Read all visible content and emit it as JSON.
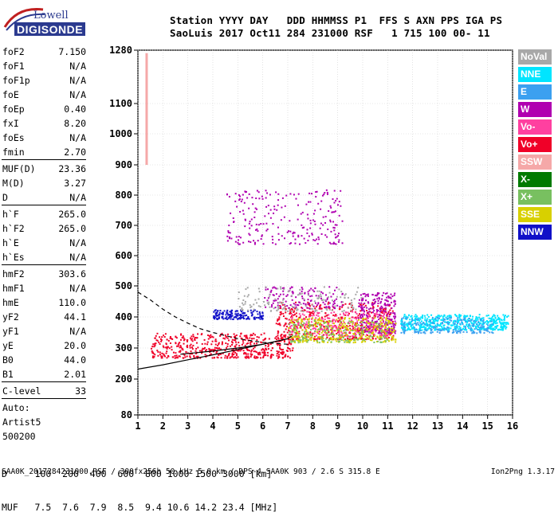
{
  "logo": {
    "line1": "Lowell",
    "line2": "DIGISONDE"
  },
  "header": {
    "line1": "Station YYYY DAY   DDD HHMMSS P1  FFS S AXN PPS IGA PS",
    "line2": "SaoLuis 2017 Oct11 284 231000 RSF   1 715 100 00- 11"
  },
  "params": [
    {
      "k": "foF2",
      "v": "7.150"
    },
    {
      "k": "foF1",
      "v": "N/A"
    },
    {
      "k": "foF1p",
      "v": "N/A"
    },
    {
      "k": "foE",
      "v": "N/A"
    },
    {
      "k": "foEp",
      "v": "0.40"
    },
    {
      "k": "fxI",
      "v": "8.20"
    },
    {
      "k": "foEs",
      "v": "N/A"
    },
    {
      "k": "fmin",
      "v": "2.70"
    },
    {
      "sep": true
    },
    {
      "k": "MUF(D)",
      "v": "23.36"
    },
    {
      "k": "M(D)",
      "v": "3.27"
    },
    {
      "k": "D",
      "v": "N/A"
    },
    {
      "sep": true
    },
    {
      "k": "h`F",
      "v": "265.0"
    },
    {
      "k": "h`F2",
      "v": "265.0"
    },
    {
      "k": "h`E",
      "v": "N/A"
    },
    {
      "k": "h`Es",
      "v": "N/A"
    },
    {
      "sep": true
    },
    {
      "k": "hmF2",
      "v": "303.6"
    },
    {
      "k": "hmF1",
      "v": "N/A"
    },
    {
      "k": "hmE",
      "v": "110.0"
    },
    {
      "k": "yF2",
      "v": "44.1"
    },
    {
      "k": "yF1",
      "v": "N/A"
    },
    {
      "k": "yE",
      "v": "20.0"
    },
    {
      "k": "B0",
      "v": "44.0"
    },
    {
      "k": "B1",
      "v": "2.01"
    },
    {
      "sep": true
    },
    {
      "k": "C-level",
      "v": "33"
    },
    {
      "sep": true
    },
    {
      "k": "Auto:",
      "v": ""
    },
    {
      "k": "Artist5",
      "v": ""
    },
    {
      "k": "500200",
      "v": ""
    }
  ],
  "legend": [
    {
      "label": "NoVal",
      "color": "#a8a8a8"
    },
    {
      "label": "NNE",
      "color": "#00e5ff"
    },
    {
      "label": "E",
      "color": "#3ba0f0"
    },
    {
      "label": "W",
      "color": "#b000b0"
    },
    {
      "label": "Vo-",
      "color": "#ff40a0"
    },
    {
      "label": "Vo+",
      "color": "#f00028"
    },
    {
      "label": "SSW",
      "color": "#f5a8a8"
    },
    {
      "label": "X-",
      "color": "#007a00"
    },
    {
      "label": "X+",
      "color": "#78c060"
    },
    {
      "label": "SSE",
      "color": "#d8d000"
    },
    {
      "label": "NNW",
      "color": "#1010c8"
    }
  ],
  "chart_data": {
    "type": "scatter",
    "x_ticks": [
      "1",
      "2",
      "3",
      "4",
      "5",
      "6",
      "7",
      "8",
      "9",
      "10",
      "11",
      "12",
      "13",
      "14",
      "15",
      "16"
    ],
    "y_ticks": [
      "80",
      "200",
      "300",
      "400",
      "500",
      "600",
      "700",
      "800",
      "900",
      "1000",
      "1100",
      "1280"
    ],
    "xlim": [
      1,
      16
    ],
    "ylim": [
      80,
      1280
    ],
    "grid": true,
    "profile_solid": [
      [
        1,
        232
      ],
      [
        2,
        246
      ],
      [
        3,
        262
      ],
      [
        4,
        278
      ],
      [
        5,
        295
      ],
      [
        6,
        312
      ],
      [
        7,
        330
      ],
      [
        7.15,
        338
      ]
    ],
    "profile_solid_lower": [
      [
        2.7,
        280
      ],
      [
        4,
        290
      ],
      [
        5,
        300
      ],
      [
        6,
        312
      ],
      [
        7,
        330
      ]
    ],
    "profile_dashed": [
      [
        1,
        480
      ],
      [
        1.5,
        455
      ],
      [
        2,
        425
      ],
      [
        2.5,
        400
      ],
      [
        3,
        380
      ],
      [
        3.5,
        362
      ],
      [
        4,
        350
      ],
      [
        5,
        330
      ],
      [
        6,
        318
      ],
      [
        7,
        312
      ]
    ],
    "ssw_bar": {
      "x": 1.35,
      "y_min": 900,
      "y_max": 1270
    },
    "clusters": [
      {
        "color": "#f00028",
        "x": [
          1.5,
          7.2
        ],
        "y": [
          270,
          350
        ],
        "n": 520
      },
      {
        "color": "#f00028",
        "x": [
          6.5,
          11.2
        ],
        "y": [
          330,
          450
        ],
        "n": 480
      },
      {
        "color": "#b000b0",
        "x": [
          9.8,
          11.3
        ],
        "y": [
          350,
          480
        ],
        "n": 260
      },
      {
        "color": "#ff40a0",
        "x": [
          7,
          11
        ],
        "y": [
          340,
          420
        ],
        "n": 240
      },
      {
        "color": "#d8d000",
        "x": [
          7,
          11.3
        ],
        "y": [
          320,
          400
        ],
        "n": 320
      },
      {
        "color": "#78c060",
        "x": [
          7,
          11
        ],
        "y": [
          320,
          390
        ],
        "n": 150
      },
      {
        "color": "#00e5ff",
        "x": [
          11.5,
          15.8
        ],
        "y": [
          360,
          410
        ],
        "n": 520
      },
      {
        "color": "#3ba0f0",
        "x": [
          11.5,
          15.2
        ],
        "y": [
          350,
          400
        ],
        "n": 200
      },
      {
        "color": "#1010c8",
        "x": [
          4,
          6
        ],
        "y": [
          395,
          425
        ],
        "n": 160
      },
      {
        "color": "#b000b0",
        "x": [
          4.5,
          9.2
        ],
        "y": [
          640,
          820
        ],
        "n": 240
      },
      {
        "color": "#b000b0",
        "x": [
          6,
          9.2
        ],
        "y": [
          430,
          500
        ],
        "n": 140
      },
      {
        "color": "#a8a8a8",
        "x": [
          5,
          10
        ],
        "y": [
          420,
          500
        ],
        "n": 140
      }
    ],
    "dmuf": {
      "d_label": "D",
      "muf_label": "MUF",
      "d": [
        "100",
        "200",
        "400",
        "600",
        "800",
        "1000",
        "1500",
        "3000"
      ],
      "d_unit": "[km]",
      "muf": [
        "7.5",
        "7.6",
        "7.9",
        "8.5",
        "9.4",
        "10.6",
        "14.2",
        "23.4"
      ],
      "muf_unit": "[MHz]"
    }
  },
  "bottom": {
    "d_line": "D     100  200  400  600  800 1000 1500 3000 [km]",
    "muf_line": "MUF   7.5  7.6  7.9  8.5  9.4 10.6 14.2 23.4 [MHz]"
  },
  "footer": {
    "file": "SAA0K_2017284231000.RSF / 300fx256h 50 kHz 5.0 km / DPS-4 SAA0K 903 / 2.6 S 315.8 E",
    "version": "Ion2Png 1.3.17"
  }
}
